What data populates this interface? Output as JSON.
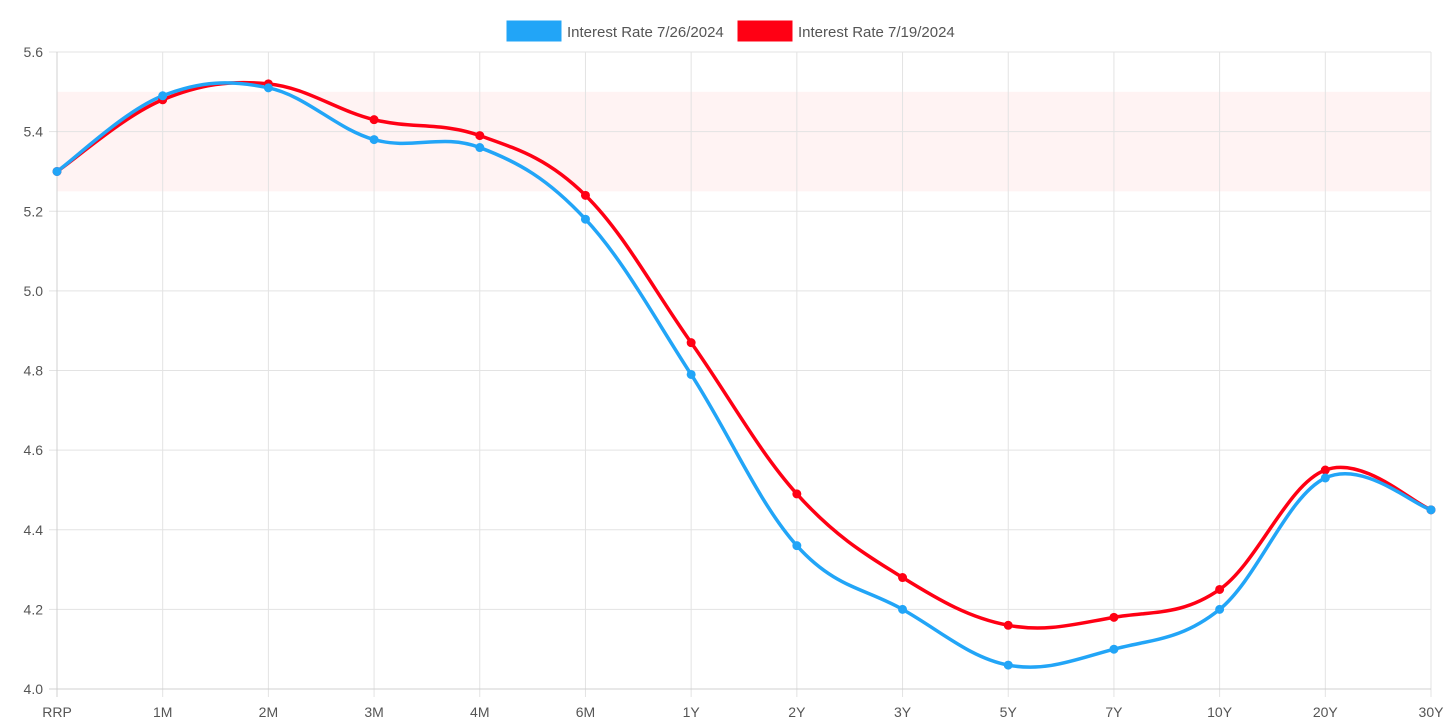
{
  "chart_data": {
    "type": "line",
    "categories": [
      "RRP",
      "1M",
      "2M",
      "3M",
      "4M",
      "6M",
      "1Y",
      "2Y",
      "3Y",
      "5Y",
      "7Y",
      "10Y",
      "20Y",
      "30Y"
    ],
    "series": [
      {
        "name": "Interest Rate 7/26/2024",
        "color": "#22a5f7",
        "values": [
          5.3,
          5.49,
          5.51,
          5.38,
          5.36,
          5.18,
          4.79,
          4.36,
          4.2,
          4.06,
          4.1,
          4.2,
          4.53,
          4.45
        ]
      },
      {
        "name": "Interest Rate 7/19/2024",
        "color": "#ff0014",
        "values": [
          5.3,
          5.48,
          5.52,
          5.43,
          5.39,
          5.24,
          4.87,
          4.49,
          4.28,
          4.16,
          4.18,
          4.25,
          4.55,
          4.45
        ]
      }
    ],
    "y_ticks": [
      "4.0",
      "4.2",
      "4.4",
      "4.6",
      "4.8",
      "5.0",
      "5.2",
      "5.4",
      "5.6"
    ],
    "ylim": [
      4.0,
      5.6
    ],
    "shaded_band": {
      "from": 5.25,
      "to": 5.5,
      "color": "#fff3f3"
    },
    "grid": true,
    "legend_position": "top-center",
    "title": "",
    "xlabel": "",
    "ylabel": ""
  }
}
